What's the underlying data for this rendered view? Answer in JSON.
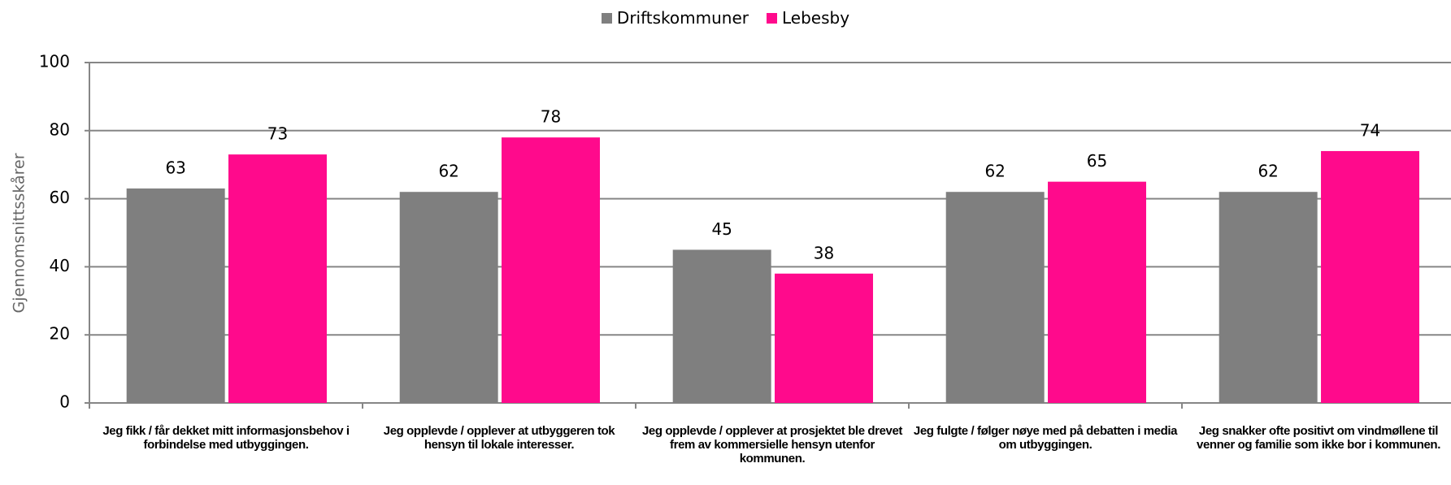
{
  "chart_data": {
    "type": "bar",
    "y_axis_label": "Gjennomsnittsskårer",
    "categories": [
      "Jeg fikk / får dekket mitt informasjonsbehov i forbindelse med utbyggingen.",
      "Jeg opplevde / opplever at utbyggeren tok hensyn til lokale interesser.",
      "Jeg opplevde / opplever at prosjektet ble drevet frem av kommersielle hensyn utenfor kommunen.",
      "Jeg fulgte / følger nøye med på debatten i media om utbyggingen.",
      "Jeg snakker ofte positivt om vindmøllene til venner og familie som ikke bor i kommunen."
    ],
    "series": [
      {
        "name": "Driftskommuner",
        "color": "#7f7f7f",
        "values": [
          63,
          62,
          45,
          62,
          62
        ]
      },
      {
        "name": "Lebesby",
        "color": "#ff0a8c",
        "values": [
          73,
          78,
          38,
          65,
          74
        ]
      }
    ],
    "ylim": [
      0,
      100
    ],
    "yticks": [
      0,
      20,
      40,
      60,
      80,
      100
    ],
    "grid": true,
    "legend": "top"
  }
}
